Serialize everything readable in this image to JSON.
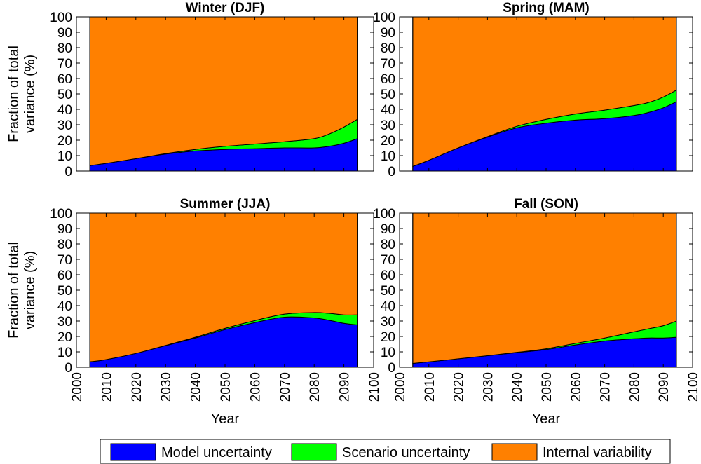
{
  "legend": {
    "entries": [
      {
        "label": "Model uncertainty",
        "color": "#0000ff"
      },
      {
        "label": "Scenario uncertainty",
        "color": "#00ff00"
      },
      {
        "label": "Internal variability",
        "color": "#ff8000"
      }
    ]
  },
  "chart_data": [
    {
      "type": "area",
      "stacked": true,
      "title": "Winter (DJF)",
      "xlabel": "",
      "ylabel": "Fraction of total variance (%)",
      "xlim": [
        2000,
        2100
      ],
      "ylim": [
        0,
        100
      ],
      "xticks": [
        2000,
        2010,
        2020,
        2030,
        2040,
        2050,
        2060,
        2070,
        2080,
        2090,
        2100
      ],
      "yticks": [
        0,
        10,
        20,
        30,
        40,
        50,
        60,
        70,
        80,
        90,
        100
      ],
      "x": [
        2004.5,
        2010,
        2020,
        2030,
        2040,
        2050,
        2060,
        2070,
        2080,
        2085,
        2090,
        2094.5
      ],
      "series": [
        {
          "name": "Model uncertainty",
          "color": "#0000ff",
          "values": [
            3.5,
            5,
            8,
            11,
            13,
            14,
            14.5,
            15,
            15,
            16,
            18,
            21
          ]
        },
        {
          "name": "Scenario uncertainty",
          "color": "#00ff00",
          "values": [
            0,
            0,
            0,
            0.3,
            1,
            2,
            3,
            4,
            6,
            8,
            10.5,
            12.5
          ]
        },
        {
          "name": "Internal variability",
          "color": "#ff8000",
          "values": [
            96.5,
            95,
            92,
            88.7,
            86,
            84,
            82.5,
            81,
            79,
            76,
            71.5,
            66.5
          ]
        }
      ]
    },
    {
      "type": "area",
      "stacked": true,
      "title": "Spring (MAM)",
      "xlabel": "",
      "ylabel": "",
      "xlim": [
        2000,
        2100
      ],
      "ylim": [
        0,
        100
      ],
      "xticks": [
        2000,
        2010,
        2020,
        2030,
        2040,
        2050,
        2060,
        2070,
        2080,
        2090,
        2100
      ],
      "yticks": [
        0,
        10,
        20,
        30,
        40,
        50,
        60,
        70,
        80,
        90,
        100
      ],
      "x": [
        2004.5,
        2010,
        2020,
        2030,
        2040,
        2050,
        2060,
        2070,
        2080,
        2085,
        2090,
        2094.5
      ],
      "series": [
        {
          "name": "Model uncertainty",
          "color": "#0000ff",
          "values": [
            3,
            7,
            15,
            22,
            28,
            31,
            33,
            34,
            36,
            38,
            41,
            45
          ]
        },
        {
          "name": "Scenario uncertainty",
          "color": "#00ff00",
          "values": [
            0,
            0,
            0,
            0.3,
            1,
            2.5,
            4,
            5.5,
            6.5,
            6.5,
            7,
            7.5
          ]
        },
        {
          "name": "Internal variability",
          "color": "#ff8000",
          "values": [
            97,
            93,
            85,
            77.7,
            71,
            66.5,
            63,
            60.5,
            57.5,
            55.5,
            52,
            47.5
          ]
        }
      ]
    },
    {
      "type": "area",
      "stacked": true,
      "title": "Summer (JJA)",
      "xlabel": "Year",
      "ylabel": "Fraction of total variance (%)",
      "xlim": [
        2000,
        2100
      ],
      "ylim": [
        0,
        100
      ],
      "xticks": [
        2000,
        2010,
        2020,
        2030,
        2040,
        2050,
        2060,
        2070,
        2080,
        2090,
        2100
      ],
      "yticks": [
        0,
        10,
        20,
        30,
        40,
        50,
        60,
        70,
        80,
        90,
        100
      ],
      "x": [
        2004.5,
        2010,
        2020,
        2030,
        2040,
        2050,
        2060,
        2070,
        2080,
        2085,
        2090,
        2094.5
      ],
      "series": [
        {
          "name": "Model uncertainty",
          "color": "#0000ff",
          "values": [
            3.5,
            5,
            9,
            14,
            19,
            24.5,
            29,
            32.5,
            32,
            30.5,
            28.5,
            27.5
          ]
        },
        {
          "name": "Scenario uncertainty",
          "color": "#00ff00",
          "values": [
            0,
            0,
            0,
            0.2,
            0.5,
            0.8,
            1.3,
            2,
            3.5,
            4.5,
            5.5,
            6.5
          ]
        },
        {
          "name": "Internal variability",
          "color": "#ff8000",
          "values": [
            96.5,
            95,
            91,
            85.8,
            80.5,
            74.7,
            69.7,
            65.5,
            64.5,
            65,
            66,
            66
          ]
        }
      ]
    },
    {
      "type": "area",
      "stacked": true,
      "title": "Fall (SON)",
      "xlabel": "Year",
      "ylabel": "",
      "xlim": [
        2000,
        2100
      ],
      "ylim": [
        0,
        100
      ],
      "xticks": [
        2000,
        2010,
        2020,
        2030,
        2040,
        2050,
        2060,
        2070,
        2080,
        2090,
        2100
      ],
      "yticks": [
        0,
        10,
        20,
        30,
        40,
        50,
        60,
        70,
        80,
        90,
        100
      ],
      "x": [
        2004.5,
        2010,
        2020,
        2030,
        2040,
        2050,
        2060,
        2070,
        2080,
        2085,
        2090,
        2094.5
      ],
      "series": [
        {
          "name": "Model uncertainty",
          "color": "#0000ff",
          "values": [
            2.5,
            3.5,
            5.5,
            7.5,
            9.5,
            11.5,
            14.5,
            17,
            18.5,
            19,
            19,
            19.5
          ]
        },
        {
          "name": "Scenario uncertainty",
          "color": "#00ff00",
          "values": [
            0,
            0,
            0,
            0,
            0.2,
            0.5,
            1,
            2,
            4.5,
            6,
            8,
            10.5
          ]
        },
        {
          "name": "Internal variability",
          "color": "#ff8000",
          "values": [
            97.5,
            96.5,
            94.5,
            92.5,
            90.3,
            88,
            84.5,
            81,
            77,
            75,
            73,
            70
          ]
        }
      ]
    }
  ]
}
